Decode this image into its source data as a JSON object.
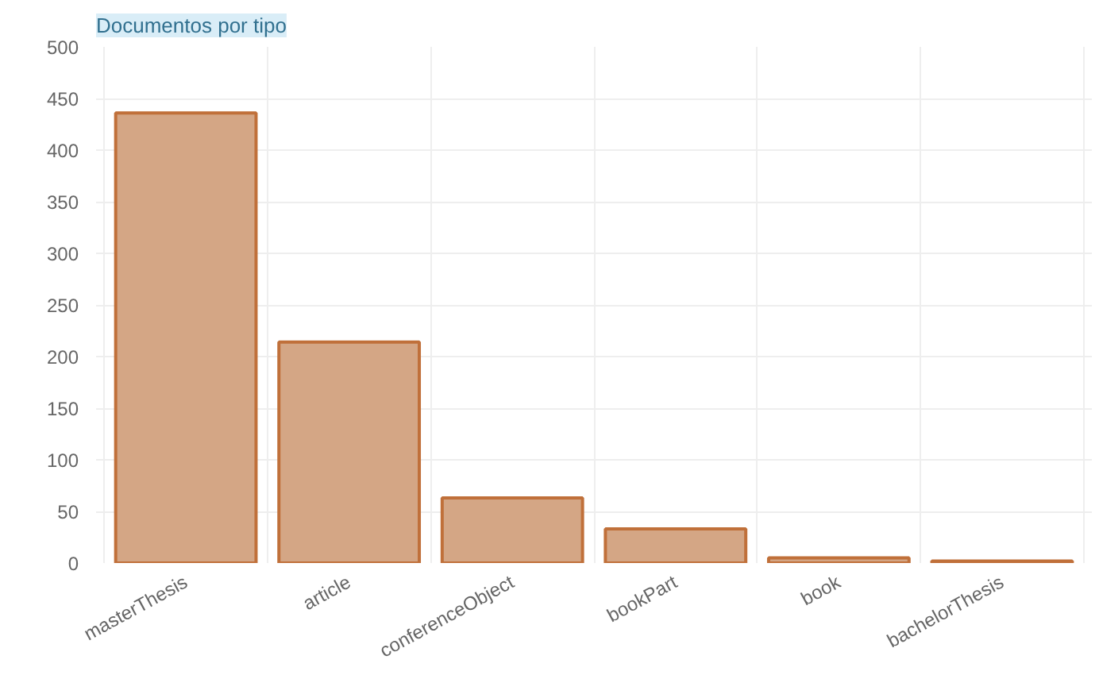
{
  "chart_data": {
    "type": "bar",
    "title": "Documentos por tipo",
    "categories": [
      "masterThesis",
      "article",
      "conferenceObject",
      "bookPart",
      "book",
      "bachelorThesis"
    ],
    "values": [
      436,
      214,
      63,
      33,
      5,
      2
    ],
    "color": "#d4a685",
    "ylim": [
      0,
      500
    ],
    "yticks": [
      0,
      50,
      100,
      150,
      200,
      250,
      300,
      350,
      400,
      450,
      500
    ],
    "grid": true
  }
}
